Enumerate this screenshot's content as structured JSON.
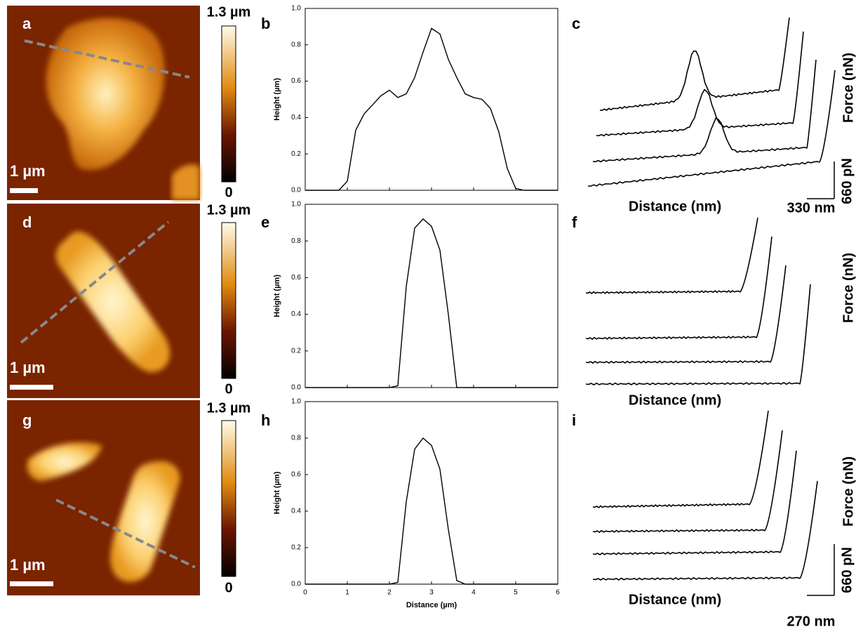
{
  "panels": {
    "labels": [
      "a",
      "b",
      "c",
      "d",
      "e",
      "f",
      "g",
      "h",
      "i"
    ]
  },
  "afm": {
    "scale_labels": [
      "1 µm",
      "1 µm",
      "1 µm"
    ],
    "colorbar_max": [
      "1.3 µm",
      "1.3 µm",
      "1.3 µm"
    ],
    "colorbar_min": [
      "0",
      "0",
      "0"
    ]
  },
  "force": {
    "y_labels": [
      "Force (nN)",
      "Force (nN)",
      "Force (nN)"
    ],
    "x_labels": [
      "Distance (nm)",
      "Distance (nm)",
      "Distance (nm)"
    ],
    "force_scales": [
      "660 pN",
      "660 pN"
    ],
    "distance_scales": [
      "330 nm",
      "270 nm"
    ]
  },
  "chart_data": [
    {
      "type": "line",
      "ylabel": "Height (µm)",
      "color": "#000000",
      "xlim": [
        0,
        6
      ],
      "ylim": [
        0,
        1
      ],
      "xticks": [
        0,
        1,
        2,
        3,
        4,
        5,
        6
      ],
      "xtick_labels": false,
      "yticks": [
        {
          "value": 0,
          "label": "0.0"
        },
        0.2,
        0.4,
        0.6,
        0.8,
        {
          "value": 1,
          "label": "1.0"
        }
      ],
      "x": [
        0,
        0.2,
        0.4,
        0.6,
        0.8,
        1.0,
        1.2,
        1.4,
        1.6,
        1.8,
        2.0,
        2.2,
        2.4,
        2.6,
        2.8,
        3.0,
        3.2,
        3.4,
        3.6,
        3.8,
        4.0,
        4.2,
        4.4,
        4.6,
        4.8,
        5.0,
        5.2,
        5.4,
        5.6,
        5.8,
        6.0
      ],
      "values": [
        0,
        0,
        0,
        0,
        0,
        0.05,
        0.33,
        0.42,
        0.47,
        0.52,
        0.55,
        0.51,
        0.53,
        0.62,
        0.76,
        0.89,
        0.86,
        0.72,
        0.62,
        0.53,
        0.51,
        0.5,
        0.45,
        0.32,
        0.12,
        0.01,
        0,
        0,
        0,
        0,
        0
      ]
    },
    {
      "type": "line",
      "ylabel": "Height (µm)",
      "color": "#000000",
      "xlim": [
        0,
        6
      ],
      "ylim": [
        0,
        1
      ],
      "xticks": [
        0,
        1,
        2,
        3,
        4,
        5,
        6
      ],
      "xtick_labels": false,
      "yticks": [
        {
          "value": 0,
          "label": "0.0"
        },
        0.2,
        0.4,
        0.6,
        0.8,
        {
          "value": 1,
          "label": "1.0"
        }
      ],
      "x": [
        0,
        0.2,
        0.4,
        0.6,
        0.8,
        1.0,
        1.2,
        1.4,
        1.6,
        1.8,
        2.0,
        2.2,
        2.4,
        2.6,
        2.8,
        3.0,
        3.2,
        3.4,
        3.6,
        3.8,
        4.0,
        4.2,
        4.4,
        4.6,
        4.8,
        5.0,
        5.2,
        5.4,
        5.6,
        5.8,
        6.0
      ],
      "values": [
        0,
        0,
        0,
        0,
        0,
        0,
        0,
        0,
        0,
        0,
        0,
        0.01,
        0.55,
        0.87,
        0.92,
        0.88,
        0.75,
        0.4,
        0,
        0,
        0,
        0,
        0,
        0,
        0,
        0,
        0,
        0,
        0,
        0,
        0
      ]
    },
    {
      "type": "line",
      "ylabel": "Height (µm)",
      "xlabel": "Distance (µm)",
      "color": "#000000",
      "xlim": [
        0,
        6
      ],
      "ylim": [
        0,
        1
      ],
      "xticks": [
        0,
        1,
        2,
        3,
        4,
        5,
        6
      ],
      "xtick_labels": true,
      "yticks": [
        {
          "value": 0,
          "label": "0.0"
        },
        0.2,
        0.4,
        0.6,
        0.8,
        {
          "value": 1,
          "label": "1.0"
        }
      ],
      "x": [
        0,
        0.2,
        0.4,
        0.6,
        0.8,
        1.0,
        1.2,
        1.4,
        1.6,
        1.8,
        2.0,
        2.2,
        2.4,
        2.6,
        2.8,
        3.0,
        3.2,
        3.4,
        3.6,
        3.8,
        4.0,
        4.2,
        4.4,
        4.6,
        4.8,
        5.0,
        5.2,
        5.4,
        5.6,
        5.8,
        6.0
      ],
      "values": [
        0,
        0,
        0,
        0,
        0,
        0,
        0,
        0,
        0,
        0,
        0,
        0.01,
        0.45,
        0.74,
        0.8,
        0.76,
        0.63,
        0.3,
        0.02,
        0,
        0,
        0,
        0,
        0,
        0,
        0,
        0,
        0,
        0,
        0,
        0
      ]
    }
  ]
}
